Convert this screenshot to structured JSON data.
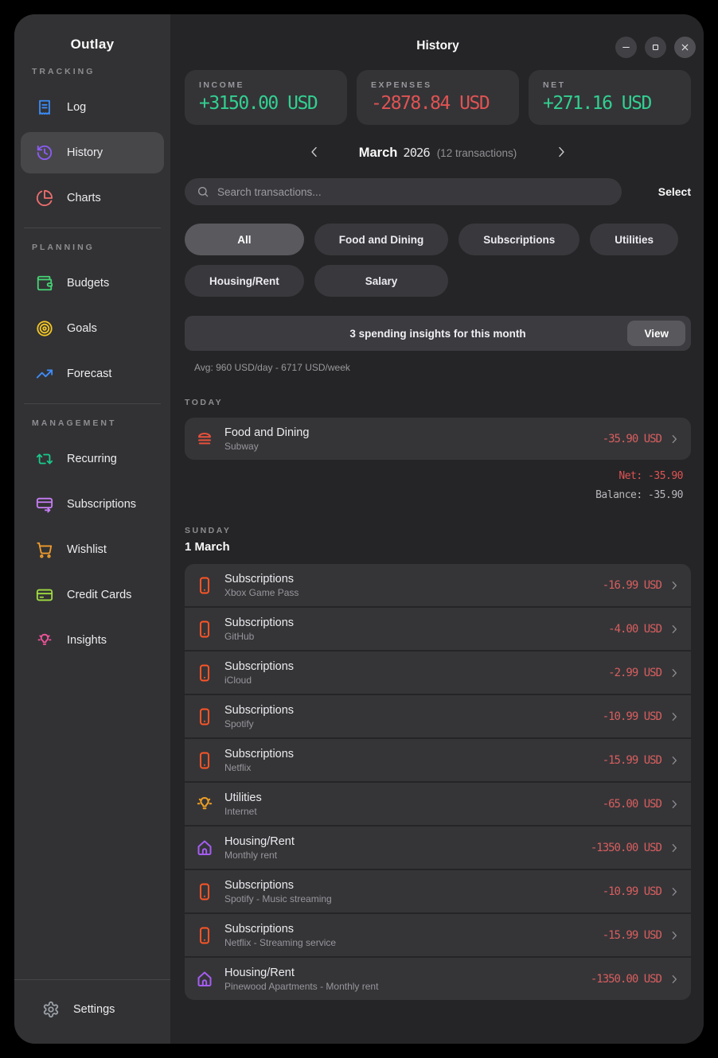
{
  "app": {
    "title": "Outlay"
  },
  "window": {
    "title": "History",
    "controls": [
      {
        "name": "minimize",
        "icon": "minimize-icon"
      },
      {
        "name": "maximize",
        "icon": "maximize-icon"
      },
      {
        "name": "close",
        "icon": "close-icon"
      }
    ]
  },
  "colors": {
    "positive_green": "#32d091",
    "negative_red": "#e05353",
    "amount_red": "#d85e5e",
    "active_chip_bg": "#59595e"
  },
  "sidebar": {
    "sections": [
      {
        "label": "TRACKING",
        "items": [
          {
            "label": "Log",
            "icon": "receipt-icon",
            "color": "#3b8bf6",
            "active": false
          },
          {
            "label": "History",
            "icon": "history-icon",
            "color": "#8b5cf6",
            "active": true
          },
          {
            "label": "Charts",
            "icon": "pie-chart-icon",
            "color": "#ef6e6e",
            "active": false
          }
        ]
      },
      {
        "label": "PLANNING",
        "items": [
          {
            "label": "Budgets",
            "icon": "wallet-icon",
            "color": "#46d375",
            "active": false
          },
          {
            "label": "Goals",
            "icon": "target-icon",
            "color": "#f2c624",
            "active": false
          },
          {
            "label": "Forecast",
            "icon": "trending-up-icon",
            "color": "#3f8cfa",
            "active": false
          }
        ]
      },
      {
        "label": "MANAGEMENT",
        "items": [
          {
            "label": "Recurring",
            "icon": "repeat-icon",
            "color": "#19c98c",
            "active": false
          },
          {
            "label": "Subscriptions",
            "icon": "card-send-icon",
            "color": "#c77df5",
            "active": false
          },
          {
            "label": "Wishlist",
            "icon": "cart-icon",
            "color": "#f09b2c",
            "active": false
          },
          {
            "label": "Credit Cards",
            "icon": "credit-card-icon",
            "color": "#a0dc40",
            "active": false
          },
          {
            "label": "Insights",
            "icon": "bulb-rays-icon",
            "color": "#f2549c",
            "active": false
          }
        ]
      }
    ],
    "footer": {
      "label": "Settings",
      "icon": "gear-icon",
      "color": "#9aa0a8"
    }
  },
  "stats": [
    {
      "label": "INCOME",
      "value": "+3150.00 USD",
      "tone": "green"
    },
    {
      "label": "EXPENSES",
      "value": "-2878.84 USD",
      "tone": "red"
    },
    {
      "label": "NET",
      "value": "+271.16 USD",
      "tone": "green"
    }
  ],
  "month_nav": {
    "month": "March",
    "year": "2026",
    "meta": "(12 transactions)"
  },
  "search": {
    "placeholder": "Search transactions...",
    "select_label": "Select"
  },
  "filters": {
    "active": "All",
    "chips": [
      "All",
      "Food and Dining",
      "Subscriptions",
      "Utilities",
      "Housing/Rent",
      "Salary"
    ]
  },
  "insights_banner": {
    "text": "3 spending insights for this month",
    "button_label": "View"
  },
  "averages": "Avg: 960 USD/day - 6717 USD/week",
  "groups": [
    {
      "day_label": "TODAY",
      "date": "",
      "transactions": [
        {
          "category": "Food and Dining",
          "name": "Subway",
          "amount": "-35.90 USD",
          "icon": "burger-icon",
          "color": "#e8503a"
        }
      ],
      "summary": [
        {
          "text": "Net: -35.90",
          "tone": "red"
        },
        {
          "text": "Balance: -35.90",
          "tone": "muted"
        }
      ]
    },
    {
      "day_label": "SUNDAY",
      "date": "1 March",
      "transactions": [
        {
          "category": "Subscriptions",
          "name": "Xbox Game Pass",
          "amount": "-16.99 USD",
          "icon": "smartphone-icon",
          "color": "#ff5526"
        },
        {
          "category": "Subscriptions",
          "name": "GitHub",
          "amount": "-4.00 USD",
          "icon": "smartphone-icon",
          "color": "#ff5526"
        },
        {
          "category": "Subscriptions",
          "name": "iCloud",
          "amount": "-2.99 USD",
          "icon": "smartphone-icon",
          "color": "#ff5526"
        },
        {
          "category": "Subscriptions",
          "name": "Spotify",
          "amount": "-10.99 USD",
          "icon": "smartphone-icon",
          "color": "#ff5526"
        },
        {
          "category": "Subscriptions",
          "name": "Netflix",
          "amount": "-15.99 USD",
          "icon": "smartphone-icon",
          "color": "#ff5526"
        },
        {
          "category": "Utilities",
          "name": "Internet",
          "amount": "-65.00 USD",
          "icon": "lightbulb-icon",
          "color": "#f0a024"
        },
        {
          "category": "Housing/Rent",
          "name": "Monthly rent",
          "amount": "-1350.00 USD",
          "icon": "house-icon",
          "color": "#a55df2"
        },
        {
          "category": "Subscriptions",
          "name": "Spotify - Music streaming",
          "amount": "-10.99 USD",
          "icon": "smartphone-icon",
          "color": "#ff5526"
        },
        {
          "category": "Subscriptions",
          "name": "Netflix - Streaming service",
          "amount": "-15.99 USD",
          "icon": "smartphone-icon",
          "color": "#ff5526"
        },
        {
          "category": "Housing/Rent",
          "name": "Pinewood Apartments - Monthly rent",
          "amount": "-1350.00 USD",
          "icon": "house-icon",
          "color": "#a55df2"
        }
      ],
      "summary": []
    }
  ]
}
